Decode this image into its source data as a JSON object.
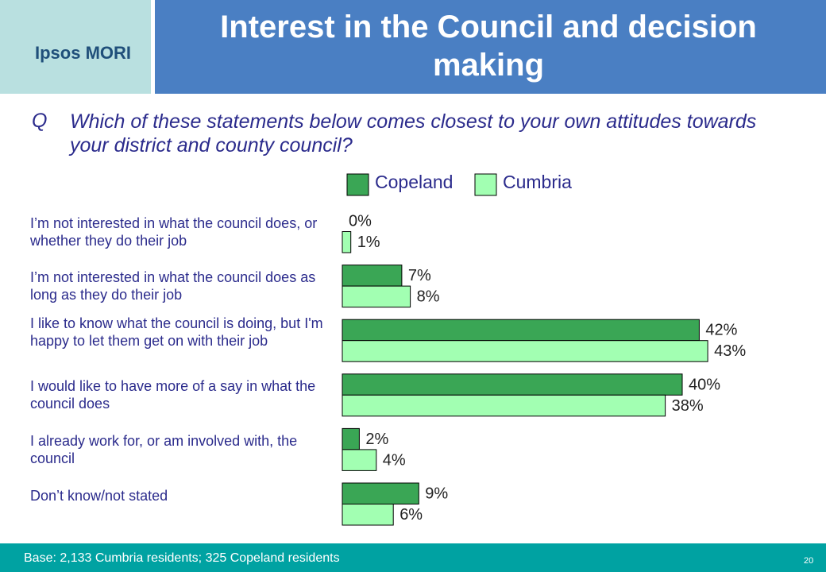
{
  "header": {
    "logo": "Ipsos MORI"
  },
  "chart_data": {
    "type": "hbar",
    "title": "Interest in the Council and decision making",
    "question_marker": "Q",
    "question": "Which of these statements below comes closest to your own attitudes towards your district and county council?",
    "categories": [
      "I’m not interested in what the council does, or whether they do their job",
      "I’m not interested in what the council does as long as they do their job",
      "I like to know what the council is doing, but I'm happy to let them get on with their job",
      "I would like to have more of a say in what the council does",
      "I already work for, or am involved with, the council",
      "Don’t know/not stated"
    ],
    "series": [
      {
        "name": "Copeland",
        "color": "#3aa655",
        "values": [
          0,
          7,
          42,
          40,
          2,
          9
        ],
        "value_labels": [
          "0%",
          "7%",
          "42%",
          "40%",
          "2%",
          "9%"
        ]
      },
      {
        "name": "Cumbria",
        "color": "#a2ffb2",
        "values": [
          1,
          8,
          43,
          38,
          4,
          6
        ],
        "value_labels": [
          "1%",
          "8%",
          "43%",
          "38%",
          "4%",
          "6%"
        ]
      }
    ]
  },
  "footer": {
    "base": "Base: 2,133 Cumbria residents; 325 Copeland residents",
    "page": "20"
  }
}
